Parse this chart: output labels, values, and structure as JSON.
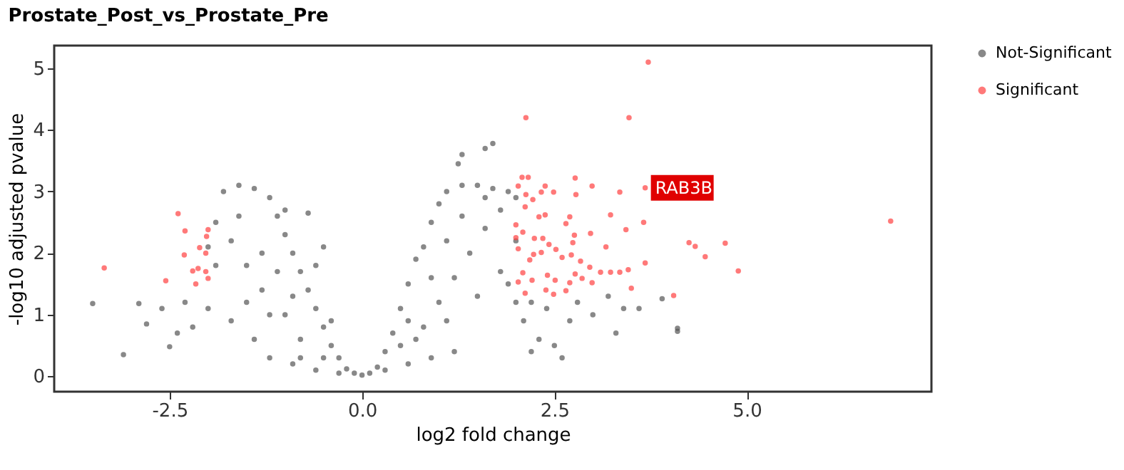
{
  "chart_data": {
    "type": "scatter",
    "title": "Prostate_Post_vs_Prostate_Pre",
    "xlabel": "log2 fold change",
    "ylabel": "-log10 adjusted pvalue",
    "xlim": [
      -4.0,
      7.4
    ],
    "ylim": [
      -0.25,
      5.37
    ],
    "xticks": [
      {
        "value": -2.5,
        "label": "-2.5"
      },
      {
        "value": 0,
        "label": "0.0"
      },
      {
        "value": 2.5,
        "label": "2.5"
      },
      {
        "value": 5,
        "label": "5.0"
      }
    ],
    "yticks": [
      0,
      1,
      2,
      3,
      4,
      5
    ],
    "grid": false,
    "legend": "top right",
    "series": [
      {
        "name": "Not-Significant",
        "color": "#555555",
        "x": [
          0,
          0.1,
          -0.1,
          0.2,
          -0.2,
          0.3,
          -0.3,
          0.4,
          -0.4,
          0.5,
          -0.5,
          0.6,
          -0.6,
          0.7,
          -0.7,
          0.8,
          -0.8,
          0.9,
          -0.9,
          1.0,
          -1.0,
          1.1,
          -1.1,
          1.3,
          -1.2,
          1.5,
          -1.4,
          1.7,
          -1.6,
          1.9,
          -1.8,
          0.3,
          0.6,
          0.9,
          1.2,
          -0.3,
          -0.6,
          -0.9,
          -1.2,
          0.5,
          0.8,
          1.0,
          1.2,
          1.4,
          1.6,
          1.8,
          -0.5,
          -0.8,
          -1.0,
          -1.3,
          -1.5,
          -1.7,
          -1.9,
          0.7,
          1.1,
          1.5,
          1.8,
          2.0,
          2.1,
          2.3,
          2.5,
          -1.4,
          -1.7,
          -2.0,
          -2.2,
          -2.4,
          -2.6,
          -2.8,
          -3.5,
          -3.1,
          -2.9,
          -2.5,
          2.8,
          3.0,
          3.2,
          3.4,
          2.6,
          3.3,
          3.6,
          3.9,
          4.1,
          4.1,
          1.25,
          1.3,
          1.6,
          1.7,
          -1.3,
          -1.1,
          -0.9,
          -1.6,
          -1.2,
          -1.5,
          -0.8,
          0.9,
          1.1,
          1.3,
          0.6,
          1.6,
          2.0,
          2.0,
          1.9,
          2.2,
          2.4,
          -1.0,
          -0.7,
          -0.5,
          -0.6,
          -2.0,
          -1.9,
          -2.3,
          2.7,
          2.2,
          -0.4
        ],
        "values": [
          0.02,
          0.05,
          0.05,
          0.15,
          0.12,
          0.4,
          0.3,
          0.7,
          0.5,
          1.1,
          0.8,
          1.5,
          1.1,
          1.9,
          1.4,
          2.1,
          1.7,
          2.5,
          2.0,
          2.8,
          2.3,
          3.0,
          2.6,
          3.1,
          2.9,
          3.1,
          3.05,
          3.05,
          3.1,
          3.0,
          3.0,
          0.1,
          0.2,
          0.3,
          0.4,
          0.05,
          0.1,
          0.2,
          0.3,
          0.5,
          0.8,
          1.2,
          1.6,
          2.0,
          2.4,
          2.7,
          0.3,
          0.6,
          1.0,
          1.4,
          1.8,
          2.2,
          2.5,
          0.6,
          0.9,
          1.3,
          1.7,
          1.2,
          0.9,
          0.6,
          0.5,
          0.6,
          0.9,
          1.1,
          0.8,
          0.7,
          1.1,
          0.85,
          1.18,
          0.35,
          1.18,
          0.48,
          1.2,
          1.0,
          1.3,
          1.1,
          0.3,
          0.7,
          1.1,
          1.26,
          0.78,
          0.73,
          3.45,
          3.6,
          3.7,
          3.78,
          2.0,
          1.7,
          1.3,
          2.6,
          1.0,
          1.2,
          0.3,
          1.6,
          2.2,
          2.6,
          0.9,
          2.9,
          2.9,
          2.2,
          1.5,
          1.2,
          1.1,
          2.7,
          2.65,
          2.1,
          1.8,
          2.1,
          1.8,
          1.2,
          0.9,
          0.4,
          0.9
        ]
      },
      {
        "name": "Significant",
        "color": "#ff4040",
        "x": [
          -3.35,
          -2.39,
          -2.3,
          -2.31,
          -2.55,
          -2.11,
          -2.0,
          -2.02,
          -2.03,
          -2.2,
          -2.13,
          -2.03,
          -2.16,
          -2.0,
          3.72,
          2.13,
          3.47,
          3.68,
          6.87,
          2.08,
          2.16,
          2.77,
          2.03,
          2.38,
          2.99,
          2.13,
          2.33,
          2.49,
          2.78,
          3.35,
          2.22,
          2.12,
          3.23,
          2.3,
          2.38,
          2.7,
          3.66,
          2.0,
          2.65,
          3.43,
          2.0,
          2.09,
          2.76,
          2.97,
          2.24,
          2.35,
          2.43,
          2.52,
          2.74,
          2.03,
          3.17,
          4.25,
          4.33,
          4.72,
          4.46,
          2.23,
          2.33,
          2.6,
          2.84,
          2.72,
          2.18,
          3.68,
          4.89,
          2.96,
          3.1,
          3.23,
          3.35,
          3.46,
          2.09,
          2.41,
          2.77,
          2.86,
          2.99,
          2.51,
          2.21,
          2.03,
          2.39,
          2.65,
          2.12,
          3.5,
          4.05,
          2.7,
          2.49
        ],
        "values": [
          1.76,
          2.64,
          2.36,
          1.97,
          1.55,
          2.09,
          2.38,
          2.27,
          2.0,
          1.71,
          1.75,
          1.7,
          1.5,
          1.59,
          5.1,
          4.2,
          4.2,
          3.06,
          2.52,
          3.23,
          3.23,
          3.22,
          3.09,
          3.09,
          3.09,
          2.95,
          2.99,
          2.99,
          2.95,
          2.99,
          2.87,
          2.75,
          2.62,
          2.59,
          2.62,
          2.59,
          2.5,
          2.46,
          2.48,
          2.38,
          2.25,
          2.34,
          2.29,
          2.32,
          2.24,
          2.24,
          2.14,
          2.06,
          2.17,
          2.07,
          2.1,
          2.17,
          2.11,
          2.16,
          1.94,
          1.98,
          2.01,
          1.93,
          1.87,
          1.97,
          1.89,
          1.84,
          1.71,
          1.77,
          1.69,
          1.69,
          1.69,
          1.73,
          1.68,
          1.64,
          1.66,
          1.59,
          1.52,
          1.56,
          1.56,
          1.53,
          1.4,
          1.39,
          1.35,
          1.43,
          1.31,
          1.52,
          1.33
        ]
      }
    ],
    "annotations": [
      {
        "text": "RAB3B",
        "x": 3.68,
        "y": 3.06
      }
    ]
  }
}
